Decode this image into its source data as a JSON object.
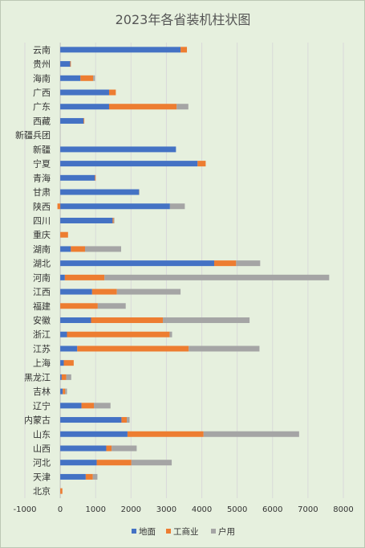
{
  "chart_data": {
    "type": "bar",
    "orientation": "horizontal",
    "stacked": true,
    "title": "2023年各省装机柱状图",
    "categories": [
      "云南",
      "贵州",
      "海南",
      "广西",
      "广东",
      "西藏",
      "新疆兵团",
      "新疆",
      "宁夏",
      "青海",
      "甘肃",
      "陕西",
      "四川",
      "重庆",
      "湖南",
      "湖北",
      "河南",
      "江西",
      "福建",
      "安徽",
      "浙江",
      "江苏",
      "上海",
      "黑龙江",
      "吉林",
      "辽宁",
      "内蒙古",
      "山东",
      "山西",
      "河北",
      "天津",
      "北京"
    ],
    "series": [
      {
        "name": "地面",
        "color": "#4472c4",
        "values": [
          3400,
          280,
          570,
          1380,
          1380,
          660,
          0,
          3270,
          3880,
          980,
          2220,
          3100,
          1480,
          0,
          300,
          4350,
          130,
          900,
          0,
          870,
          190,
          480,
          100,
          40,
          70,
          600,
          1730,
          1900,
          1300,
          1030,
          720,
          0
        ]
      },
      {
        "name": "工商业",
        "color": "#ed7d31",
        "values": [
          180,
          20,
          360,
          190,
          1910,
          20,
          0,
          0,
          230,
          20,
          0,
          -80,
          30,
          220,
          400,
          620,
          1120,
          700,
          1060,
          2030,
          2900,
          3150,
          280,
          130,
          70,
          350,
          150,
          2150,
          150,
          980,
          200,
          60
        ]
      },
      {
        "name": "户用",
        "color": "#a5a5a5",
        "values": [
          0,
          0,
          50,
          0,
          330,
          0,
          0,
          0,
          0,
          0,
          20,
          420,
          20,
          0,
          1020,
          680,
          6350,
          1800,
          790,
          2450,
          70,
          2000,
          0,
          140,
          50,
          470,
          80,
          2700,
          710,
          1140,
          130,
          0
        ]
      }
    ],
    "xlim": [
      -1000,
      8000
    ],
    "xticks": [
      -1000,
      0,
      1000,
      2000,
      3000,
      4000,
      5000,
      6000,
      7000,
      8000
    ],
    "grid": true,
    "legend_position": "bottom"
  }
}
